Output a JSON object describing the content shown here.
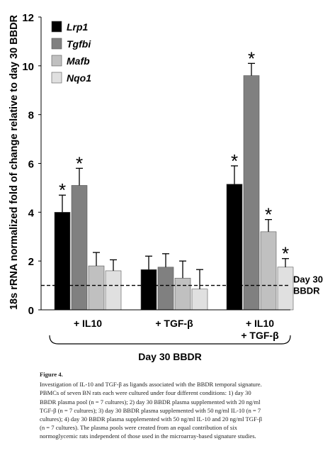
{
  "chart_data": {
    "type": "bar",
    "ylabel": "18s rRNA normalized fold of change relative to day 30 BBDR",
    "ylim": [
      0,
      12
    ],
    "yticks": [
      0,
      2,
      4,
      6,
      8,
      10,
      12
    ],
    "categories": [
      "+ IL10",
      "+ TGF-β",
      "+ IL10\n+ TGF-β"
    ],
    "group_label": "Day 30 BBDR",
    "reference_line": {
      "value": 1.0,
      "label": "Day 30\nBBDR",
      "style": "dashed"
    },
    "legend_position": "top-left",
    "series": [
      {
        "name": "Lrp1",
        "color": "#000000",
        "values": [
          4.0,
          1.65,
          5.15
        ],
        "errors": [
          0.7,
          0.55,
          0.75
        ],
        "significant": [
          true,
          false,
          true
        ]
      },
      {
        "name": "Tgfbi",
        "color": "#808080",
        "values": [
          5.1,
          1.75,
          9.6
        ],
        "errors": [
          0.7,
          0.55,
          0.5
        ],
        "significant": [
          true,
          false,
          true
        ]
      },
      {
        "name": "Mafb",
        "color": "#c0c0c0",
        "values": [
          1.8,
          1.3,
          3.2
        ],
        "errors": [
          0.55,
          0.7,
          0.5
        ],
        "significant": [
          false,
          false,
          true
        ]
      },
      {
        "name": "Nqo1",
        "color": "#e0e0e0",
        "values": [
          1.6,
          0.85,
          1.75
        ],
        "errors": [
          0.45,
          0.8,
          0.35
        ],
        "significant": [
          false,
          false,
          true
        ]
      }
    ],
    "significance_marker": "*",
    "grid": false
  },
  "caption": {
    "figure_label": "Figure 4.",
    "line1": "Investigation of IL-10 and TGF-β as ligands associated with the BBDR temporal signature.",
    "line2": "PBMCs of seven BN rats each were cultured under four different conditions: 1) day 30",
    "line3": "BBDR plasma pool (n = 7 cultures); 2) day 30 BBDR plasma supplemented with 20 ng/ml",
    "line4": "TGF-β (n = 7 cultures); 3) day 30 BBDR plasma supplemented with 50 ng/ml IL-10 (n = 7",
    "line5": "cultures); 4) day 30 BBDR plasma supplemented with 50 ng/ml IL-10 and 20 ng/ml TGF-β",
    "line6": "(n = 7 cultures). The plasma pools were created from an equal contribution of six",
    "line7": "normoglycemic rats independent of those used in the microarray-based signature studies."
  }
}
